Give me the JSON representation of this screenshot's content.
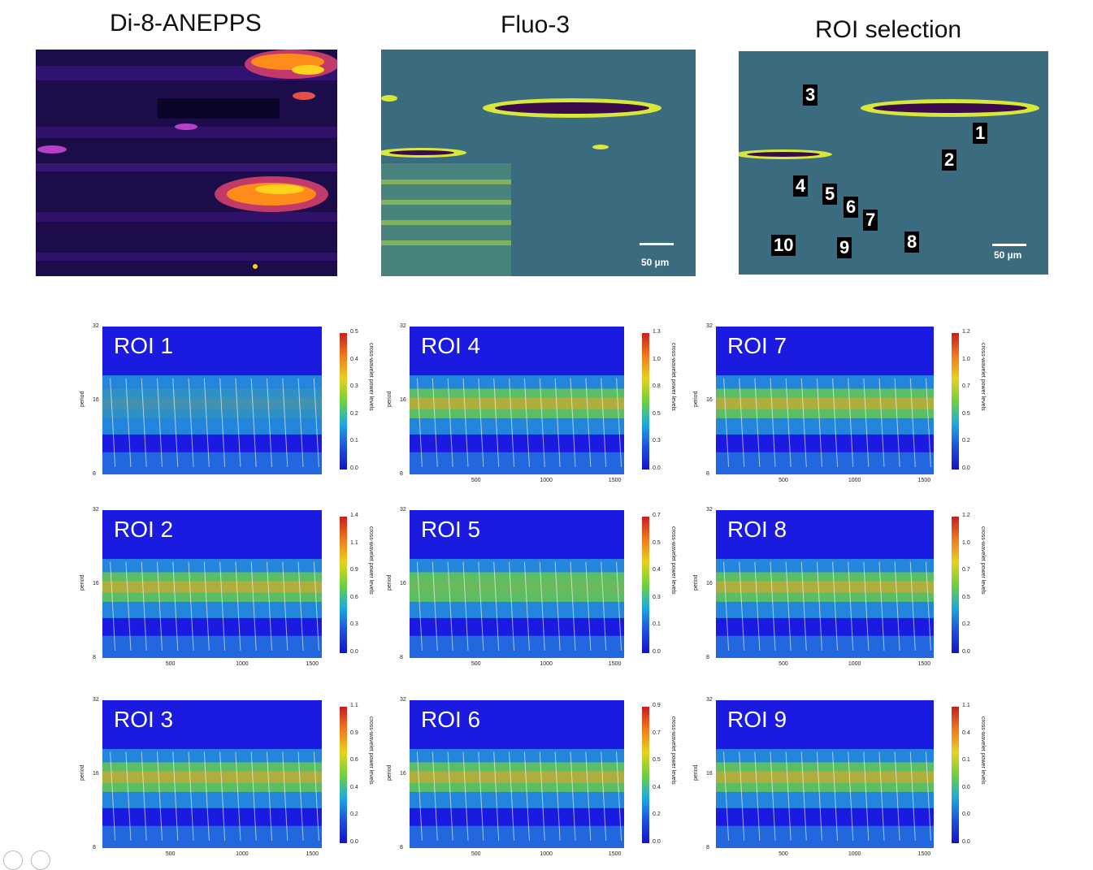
{
  "titles": {
    "dye1": "Di-8-ANEPPS",
    "dye2": "Fluo-3",
    "roi": "ROI selection"
  },
  "scale_bar": "50 µm",
  "roi_markers": [
    "1",
    "2",
    "3",
    "4",
    "5",
    "6",
    "7",
    "8",
    "9",
    "10"
  ],
  "colors": {
    "plot_background": "#1a1ae0",
    "contour": "#ffffff",
    "di8_background": "#1c0d4a",
    "di8_hot": "#ff8c1a",
    "fluo_background": "#3a6b7e",
    "fluo_bright": "#d8e83a"
  },
  "plots": [
    {
      "label": "ROI 1",
      "yticks": [
        "32",
        "16",
        "8"
      ],
      "xticks": [],
      "cbar": [
        "0.5",
        "0.4",
        "0.3",
        "0.2",
        "0.1",
        "0.0"
      ]
    },
    {
      "label": "ROI 4",
      "yticks": [
        "32",
        "16",
        "8"
      ],
      "xticks": [
        "500",
        "1000",
        "1500"
      ],
      "cbar": [
        "1.3",
        "1.0",
        "0.8",
        "0.5",
        "0.3",
        "0.0"
      ]
    },
    {
      "label": "ROI 7",
      "yticks": [
        "32",
        "16",
        "8"
      ],
      "xticks": [
        "500",
        "1000",
        "1500"
      ],
      "cbar": [
        "1.2",
        "1.0",
        "0.7",
        "0.5",
        "0.2",
        "0.0"
      ]
    },
    {
      "label": "ROI 2",
      "yticks": [
        "32",
        "16",
        "8"
      ],
      "xticks": [
        "500",
        "1000",
        "1500"
      ],
      "cbar": [
        "1.4",
        "1.1",
        "0.9",
        "0.6",
        "0.3",
        "0.0"
      ]
    },
    {
      "label": "ROI 5",
      "yticks": [
        "32",
        "16",
        "8"
      ],
      "xticks": [
        "500",
        "1000",
        "1500"
      ],
      "cbar": [
        "0.7",
        "0.5",
        "0.4",
        "0.3",
        "0.1",
        "0.0"
      ]
    },
    {
      "label": "ROI 8",
      "yticks": [
        "32",
        "16",
        "8"
      ],
      "xticks": [
        "500",
        "1000",
        "1500"
      ],
      "cbar": [
        "1.2",
        "1.0",
        "0.7",
        "0.5",
        "0.2",
        "0.0"
      ]
    },
    {
      "label": "ROI 3",
      "yticks": [
        "32",
        "16",
        "8"
      ],
      "xticks": [
        "500",
        "1000",
        "1500"
      ],
      "cbar": [
        "1.1",
        "0.9",
        "0.6",
        "0.4",
        "0.2",
        "0.0"
      ]
    },
    {
      "label": "ROI 6",
      "yticks": [
        "32",
        "16",
        "8"
      ],
      "xticks": [
        "500",
        "1000",
        "1500"
      ],
      "cbar": [
        "0.9",
        "0.7",
        "0.5",
        "0.4",
        "0.2",
        "0.0"
      ]
    },
    {
      "label": "ROI 9",
      "yticks": [
        "32",
        "16",
        "8"
      ],
      "xticks": [
        "500",
        "1000",
        "1500"
      ],
      "cbar": [
        "1.1",
        "0.4",
        "0.1",
        "0.0",
        "0.0",
        "0.0"
      ]
    }
  ],
  "axis": {
    "ylabel": "period",
    "cbar_label": "cross-wavelet power levels"
  }
}
